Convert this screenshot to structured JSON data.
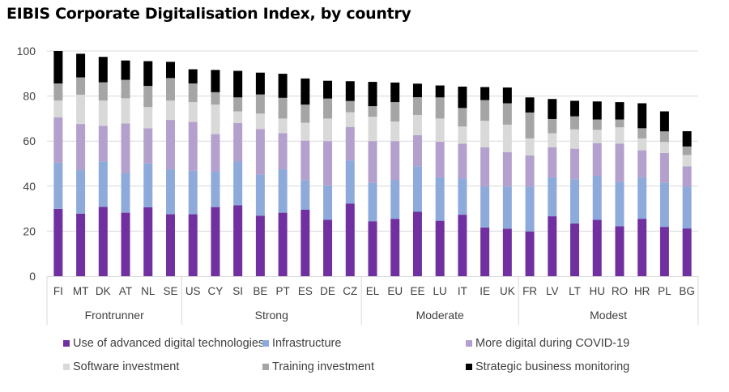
{
  "title": "EIBIS Corporate Digitalisation Index, by country",
  "chart_data": {
    "type": "bar",
    "stacked": true,
    "title": "EIBIS Corporate Digitalisation Index, by country",
    "xlabel": "",
    "ylabel": "",
    "ylim": [
      0,
      100
    ],
    "yticks": [
      0,
      20,
      40,
      60,
      80,
      100
    ],
    "grid": true,
    "legend_position": "bottom",
    "categories": [
      "FI",
      "MT",
      "DK",
      "AT",
      "NL",
      "SE",
      "US",
      "CY",
      "SI",
      "BE",
      "PT",
      "ES",
      "DE",
      "CZ",
      "EL",
      "EU",
      "EE",
      "LU",
      "IT",
      "IE",
      "UK",
      "FR",
      "LV",
      "LT",
      "HU",
      "RO",
      "HR",
      "PL",
      "BG"
    ],
    "groups": [
      {
        "label": "Frontrunner",
        "categories": [
          "FI",
          "MT",
          "DK",
          "AT",
          "NL",
          "SE"
        ]
      },
      {
        "label": "Strong",
        "categories": [
          "US",
          "CY",
          "SI",
          "BE",
          "PT",
          "ES",
          "DE",
          "CZ"
        ]
      },
      {
        "label": "Moderate",
        "categories": [
          "EL",
          "EU",
          "EE",
          "LU",
          "IT",
          "IE",
          "UK"
        ]
      },
      {
        "label": "Modest",
        "categories": [
          "FR",
          "LV",
          "LT",
          "HU",
          "RO",
          "HR",
          "PL",
          "BG"
        ]
      }
    ],
    "series": [
      {
        "name": "Use of advanced digital technologies",
        "color": "#7030a0",
        "values": [
          29.9,
          27.8,
          30.8,
          28.2,
          30.6,
          27.5,
          27.5,
          30.7,
          31.5,
          26.9,
          28.2,
          29.5,
          25.1,
          32.2,
          24.4,
          25.5,
          28.6,
          24.6,
          27.3,
          21.6,
          21.1,
          19.9,
          26.6,
          23.4,
          25.0,
          22.2,
          25.5,
          21.9,
          21.2
        ]
      },
      {
        "name": "Infrastructure",
        "color": "#8eaadb",
        "values": [
          20.5,
          19.3,
          20.2,
          17.5,
          19.5,
          20.0,
          19.3,
          15.7,
          19.4,
          18.2,
          19.3,
          13.2,
          15.1,
          19.2,
          17.1,
          17.3,
          20.2,
          19.3,
          16.2,
          18.3,
          18.7,
          19.9,
          17.3,
          19.7,
          19.6,
          19.7,
          18.4,
          19.6,
          18.6
        ]
      },
      {
        "name": "More digital during COVID-19",
        "color": "#b4a0cc",
        "values": [
          20.1,
          20.5,
          15.8,
          22.1,
          15.6,
          21.9,
          21.7,
          16.7,
          17.1,
          20.3,
          16.0,
          17.5,
          19.8,
          14.9,
          18.5,
          17.2,
          13.8,
          15.8,
          15.3,
          17.3,
          15.3,
          13.8,
          13.4,
          13.5,
          14.5,
          17.0,
          12.0,
          13.2,
          9.0
        ]
      },
      {
        "name": "Software investment",
        "color": "#d9d9d9",
        "values": [
          7.5,
          13.0,
          11.2,
          11.2,
          9.4,
          8.6,
          8.8,
          13.1,
          5.2,
          6.8,
          6.5,
          7.9,
          10.0,
          6.5,
          10.8,
          8.7,
          9.0,
          10.3,
          7.7,
          11.8,
          12.2,
          7.6,
          6.2,
          8.6,
          5.9,
          7.2,
          5.3,
          4.9,
          5.0
        ]
      },
      {
        "name": "Training investment",
        "color": "#a5a5a5",
        "values": [
          7.6,
          7.7,
          8.1,
          8.2,
          9.4,
          10.0,
          8.3,
          5.5,
          6.2,
          8.5,
          9.2,
          8.1,
          8.9,
          5.0,
          4.7,
          8.6,
          7.9,
          9.4,
          8.2,
          9.2,
          9.5,
          11.5,
          6.3,
          5.8,
          4.6,
          3.5,
          4.5,
          4.7,
          3.8
        ]
      },
      {
        "name": "Strategic business monitoring",
        "color": "#000000",
        "values": [
          14.4,
          10.5,
          11.3,
          8.6,
          11.0,
          7.2,
          6.3,
          9.9,
          11.8,
          9.7,
          10.7,
          11.6,
          7.9,
          8.8,
          10.8,
          8.7,
          6.0,
          5.3,
          9.5,
          5.8,
          7.0,
          6.7,
          8.9,
          6.9,
          8.0,
          7.7,
          11.1,
          8.9,
          6.8
        ]
      }
    ]
  },
  "legend": {
    "items": [
      {
        "label": "Use of advanced digital technologies",
        "color": "#7030a0"
      },
      {
        "label": "Infrastructure",
        "color": "#8eaadb"
      },
      {
        "label": "More digital during COVID-19",
        "color": "#b4a0cc"
      },
      {
        "label": "Software investment",
        "color": "#d9d9d9"
      },
      {
        "label": "Training investment",
        "color": "#a5a5a5"
      },
      {
        "label": "Strategic business monitoring",
        "color": "#000000"
      }
    ]
  }
}
